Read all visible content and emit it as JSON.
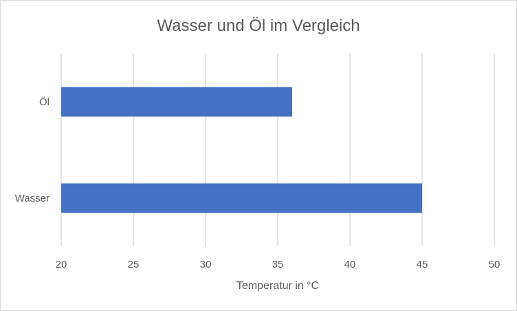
{
  "chart_data": {
    "type": "bar",
    "orientation": "horizontal",
    "title": "Wasser und Öl im Vergleich",
    "xlabel": "Temperatur in °C",
    "ylabel": "",
    "categories": [
      "Öl",
      "Wasser"
    ],
    "values": [
      36,
      45
    ],
    "xlim": [
      20,
      50
    ],
    "x_ticks": [
      "20",
      "25",
      "30",
      "35",
      "40",
      "45",
      "50"
    ],
    "grid": true,
    "legend": "none",
    "bar_color": "#4472C4",
    "grid_color": "#d9d9d9",
    "text_color": "#595959"
  }
}
